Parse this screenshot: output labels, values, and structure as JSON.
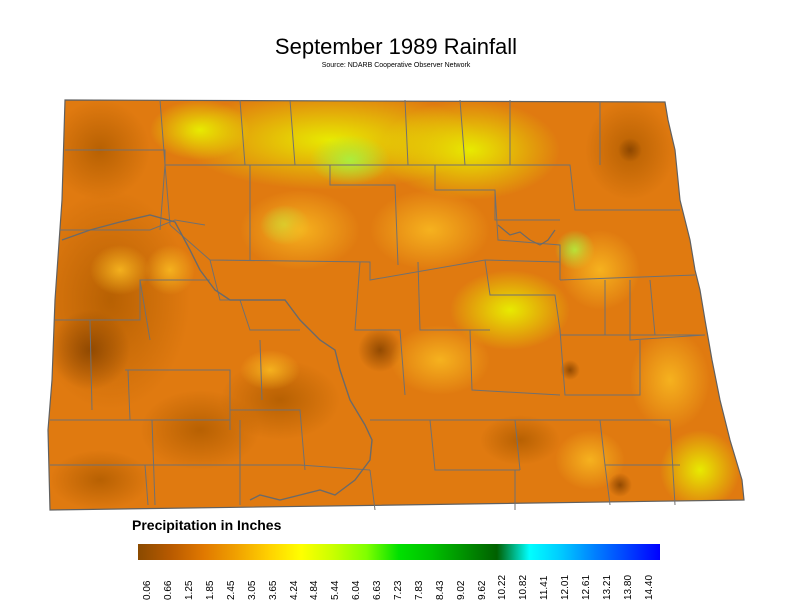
{
  "title": "September 1989 Rainfall",
  "subtitle": "Source: NDARB Cooperative Observer Network",
  "legend": {
    "title": "Precipitation in Inches",
    "ticks": [
      "0.06",
      "0.66",
      "1.25",
      "1.85",
      "2.45",
      "3.05",
      "3.65",
      "4.24",
      "4.84",
      "5.44",
      "6.04",
      "6.63",
      "7.23",
      "7.83",
      "8.43",
      "9.02",
      "9.62",
      "10.22",
      "10.82",
      "11.41",
      "12.01",
      "12.61",
      "13.21",
      "13.80",
      "14.40"
    ],
    "colors": [
      "#8a4a00",
      "#b85a00",
      "#e07800",
      "#f0a000",
      "#ffd000",
      "#ffff00",
      "#c8ff00",
      "#80ff00",
      "#00e000",
      "#00c000",
      "#009000",
      "#006000",
      "#00ffff",
      "#00c8ff",
      "#0080ff",
      "#0040ff",
      "#0000ff"
    ]
  },
  "map_colors": {
    "base": "#e07a10",
    "dark": "#a85800",
    "mid": "#f09a10",
    "light": "#f8c020",
    "yellow": "#e8f000",
    "green": "#b8f030",
    "border": "#707070"
  }
}
